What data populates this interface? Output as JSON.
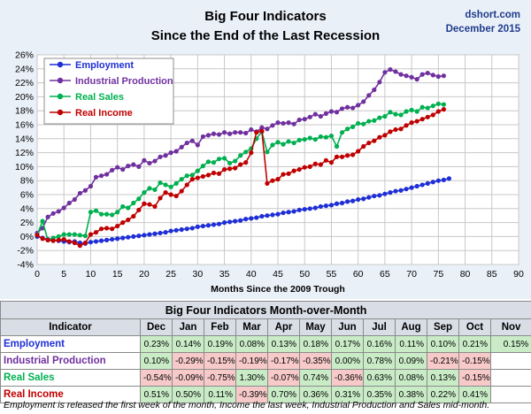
{
  "chart_data": {
    "type": "line",
    "title": "Big Four Indicators",
    "subtitle": "Since the End of the Last Recession",
    "source": "dshort.com",
    "date": "December 2015",
    "xlabel": "Months Since the 2009 Trough",
    "ylabel": "",
    "xlim": [
      0,
      90
    ],
    "ylim": [
      -4,
      26
    ],
    "x_ticks": [
      0,
      5,
      10,
      15,
      20,
      25,
      30,
      35,
      40,
      45,
      50,
      55,
      60,
      65,
      70,
      75,
      80,
      85,
      90
    ],
    "y_ticks": [
      -4,
      -2,
      0,
      2,
      4,
      6,
      8,
      10,
      12,
      14,
      16,
      18,
      20,
      22,
      24,
      26
    ],
    "y_tick_labels": [
      "-4%",
      "-2%",
      "0%",
      "2%",
      "4%",
      "6%",
      "8%",
      "10%",
      "12%",
      "14%",
      "16%",
      "18%",
      "20%",
      "22%",
      "24%",
      "26%"
    ],
    "grid": true,
    "legend_position": "top-left",
    "series": [
      {
        "name": "Employment",
        "color": "#1f2fd6",
        "x": [
          0,
          1,
          2,
          3,
          4,
          5,
          6,
          7,
          8,
          9,
          10,
          11,
          12,
          13,
          14,
          15,
          16,
          17,
          18,
          19,
          20,
          21,
          22,
          23,
          24,
          25,
          26,
          27,
          28,
          29,
          30,
          31,
          32,
          33,
          34,
          35,
          36,
          37,
          38,
          39,
          40,
          41,
          42,
          43,
          44,
          45,
          46,
          47,
          48,
          49,
          50,
          51,
          52,
          53,
          54,
          55,
          56,
          57,
          58,
          59,
          60,
          61,
          62,
          63,
          64,
          65,
          66,
          67,
          68,
          69,
          70,
          71,
          72,
          73,
          74,
          75,
          76,
          77
        ],
        "values": [
          0,
          -0.2,
          -0.4,
          -0.5,
          -0.6,
          -0.7,
          -0.8,
          -0.7,
          -0.9,
          -1.0,
          -0.8,
          -0.7,
          -0.6,
          -0.5,
          -0.4,
          -0.3,
          -0.2,
          -0.1,
          0.0,
          0.1,
          0.2,
          0.3,
          0.4,
          0.5,
          0.6,
          0.8,
          0.9,
          1.0,
          1.1,
          1.2,
          1.4,
          1.5,
          1.6,
          1.7,
          1.8,
          2.0,
          2.1,
          2.2,
          2.3,
          2.5,
          2.6,
          2.7,
          2.9,
          3.0,
          3.1,
          3.2,
          3.4,
          3.5,
          3.6,
          3.8,
          3.9,
          4.0,
          4.1,
          4.3,
          4.4,
          4.5,
          4.7,
          4.8,
          5.0,
          5.1,
          5.3,
          5.4,
          5.6,
          5.8,
          5.9,
          6.1,
          6.3,
          6.5,
          6.6,
          6.8,
          7.0,
          7.2,
          7.4,
          7.6,
          7.8,
          8.0,
          8.1,
          8.3
        ]
      },
      {
        "name": "Industrial Production",
        "color": "#7030a0",
        "x": [
          0,
          1,
          2,
          3,
          4,
          5,
          6,
          7,
          8,
          9,
          10,
          11,
          12,
          13,
          14,
          15,
          16,
          17,
          18,
          19,
          20,
          21,
          22,
          23,
          24,
          25,
          26,
          27,
          28,
          29,
          30,
          31,
          32,
          33,
          34,
          35,
          36,
          37,
          38,
          39,
          40,
          41,
          42,
          43,
          44,
          45,
          46,
          47,
          48,
          49,
          50,
          51,
          52,
          53,
          54,
          55,
          56,
          57,
          58,
          59,
          60,
          61,
          62,
          63,
          64,
          65,
          66,
          67,
          68,
          69,
          70,
          71,
          72,
          73,
          74,
          75,
          76
        ],
        "values": [
          0.5,
          1.2,
          2.8,
          3.3,
          3.6,
          4.1,
          4.8,
          5.3,
          6.2,
          6.6,
          7.2,
          8.5,
          8.7,
          8.9,
          9.5,
          9.9,
          9.6,
          10.1,
          10.3,
          10.0,
          10.9,
          10.5,
          10.8,
          11.4,
          11.6,
          12.0,
          12.2,
          12.8,
          13.4,
          13.7,
          13.1,
          14.3,
          14.5,
          14.7,
          14.6,
          14.9,
          14.7,
          14.9,
          14.9,
          14.8,
          15.3,
          15.0,
          15.6,
          15.4,
          15.9,
          16.3,
          16.2,
          16.3,
          16.1,
          16.7,
          16.8,
          17.1,
          17.5,
          17.2,
          17.6,
          17.9,
          17.8,
          18.3,
          18.5,
          18.4,
          18.8,
          19.3,
          20.2,
          21.0,
          22.1,
          23.5,
          23.9,
          23.6,
          23.2,
          23.0,
          22.8,
          22.5,
          23.2,
          23.4,
          23.1,
          22.9,
          23.0
        ]
      },
      {
        "name": "Real Sales",
        "color": "#00b050",
        "x": [
          0,
          1,
          2,
          3,
          4,
          5,
          6,
          7,
          8,
          9,
          10,
          11,
          12,
          13,
          14,
          15,
          16,
          17,
          18,
          19,
          20,
          21,
          22,
          23,
          24,
          25,
          26,
          27,
          28,
          29,
          30,
          31,
          32,
          33,
          34,
          35,
          36,
          37,
          38,
          39,
          40,
          41,
          42,
          43,
          44,
          45,
          46,
          47,
          48,
          49,
          50,
          51,
          52,
          53,
          54,
          55,
          56,
          57,
          58,
          59,
          60,
          61,
          62,
          63,
          64,
          65,
          66,
          67,
          68,
          69,
          70,
          71,
          72,
          73,
          74,
          75,
          76
        ],
        "values": [
          0.2,
          2.2,
          -0.5,
          -0.2,
          0.0,
          0.3,
          0.3,
          0.3,
          0.2,
          0.1,
          3.5,
          3.7,
          3.2,
          3.2,
          3.1,
          3.5,
          4.3,
          4.1,
          4.8,
          5.4,
          6.3,
          6.9,
          6.7,
          7.7,
          7.4,
          7.1,
          7.6,
          8.2,
          8.7,
          8.8,
          9.4,
          10.1,
          10.7,
          10.6,
          11.1,
          11.2,
          10.5,
          10.8,
          11.6,
          12.1,
          12.6,
          14.0,
          15.0,
          12.1,
          13.1,
          13.5,
          13.2,
          13.6,
          13.4,
          13.8,
          13.9,
          14.1,
          13.9,
          14.3,
          14.2,
          14.4,
          12.9,
          14.9,
          15.4,
          15.7,
          16.2,
          16.1,
          16.5,
          16.6,
          17.0,
          17.2,
          17.8,
          17.5,
          17.4,
          17.9,
          18.1,
          17.9,
          18.5,
          18.4,
          18.7,
          19.0,
          18.9
        ]
      },
      {
        "name": "Real Income",
        "color": "#c00000",
        "x": [
          0,
          1,
          2,
          3,
          4,
          5,
          6,
          7,
          8,
          9,
          10,
          11,
          12,
          13,
          14,
          15,
          16,
          17,
          18,
          19,
          20,
          21,
          22,
          23,
          24,
          25,
          26,
          27,
          28,
          29,
          30,
          31,
          32,
          33,
          34,
          35,
          36,
          37,
          38,
          39,
          40,
          41,
          42,
          43,
          44,
          45,
          46,
          47,
          48,
          49,
          50,
          51,
          52,
          53,
          54,
          55,
          56,
          57,
          58,
          59,
          60,
          61,
          62,
          63,
          64,
          65,
          66,
          67,
          68,
          69,
          70,
          71,
          72,
          73,
          74,
          75,
          76
        ],
        "values": [
          0.2,
          -0.3,
          -0.5,
          -0.6,
          -0.5,
          -0.4,
          -0.7,
          -0.9,
          -1.3,
          -0.9,
          0.3,
          0.6,
          1.1,
          1.2,
          1.1,
          1.5,
          2.0,
          2.4,
          2.9,
          3.8,
          4.7,
          4.6,
          4.3,
          5.5,
          6.3,
          6.0,
          5.8,
          6.5,
          7.4,
          8.2,
          8.4,
          8.6,
          8.8,
          9.1,
          9.0,
          9.6,
          9.7,
          9.8,
          10.3,
          10.6,
          12.0,
          14.9,
          15.1,
          7.6,
          8.0,
          8.2,
          8.9,
          9.0,
          9.4,
          9.6,
          9.9,
          10.0,
          10.4,
          10.3,
          10.9,
          10.6,
          11.4,
          11.4,
          11.6,
          11.7,
          12.2,
          12.9,
          13.4,
          13.7,
          14.2,
          14.5,
          15.0,
          15.3,
          15.4,
          15.9,
          16.3,
          16.5,
          16.8,
          17.1,
          17.4,
          17.9,
          18.2
        ]
      }
    ]
  },
  "table": {
    "title": "Big Four Indicators Month-over-Month",
    "header": "Indicator",
    "months": [
      "Dec",
      "Jan",
      "Feb",
      "Mar",
      "Apr",
      "May",
      "Jun",
      "Jul",
      "Aug",
      "Sep",
      "Oct",
      "Nov"
    ],
    "rows": [
      {
        "label": "Employment",
        "color": "#1f2fd6",
        "values": [
          "0.23%",
          "0.14%",
          "0.19%",
          "0.08%",
          "0.13%",
          "0.18%",
          "0.17%",
          "0.16%",
          "0.11%",
          "0.10%",
          "0.21%",
          "0.15%"
        ]
      },
      {
        "label": "Industrial Production",
        "color": "#7030a0",
        "values": [
          "0.10%",
          "-0.29%",
          "-0.15%",
          "-0.19%",
          "-0.17%",
          "-0.35%",
          "0.00%",
          "0.78%",
          "0.09%",
          "-0.21%",
          "-0.15%",
          ""
        ]
      },
      {
        "label": "Real Sales",
        "color": "#00b050",
        "values": [
          "-0.54%",
          "-0.09%",
          "-0.75%",
          "1.30%",
          "-0.07%",
          "0.74%",
          "-0.36%",
          "0.63%",
          "0.08%",
          "0.13%",
          "-0.15%",
          ""
        ]
      },
      {
        "label": "Real Income",
        "color": "#c00000",
        "values": [
          "0.51%",
          "0.50%",
          "0.11%",
          "-0.39%",
          "0.70%",
          "0.36%",
          "0.31%",
          "0.35%",
          "0.38%",
          "0.22%",
          "0.41%",
          ""
        ]
      }
    ]
  },
  "footnote": "Employment is released the first week of the month, Income the last week, Industrial Production and Sales mid-month."
}
